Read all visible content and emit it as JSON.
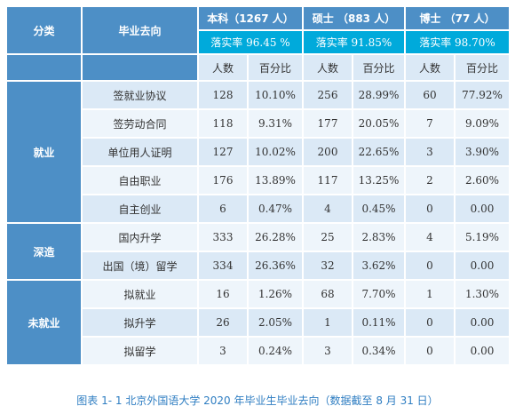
{
  "header": {
    "category_label": "分类",
    "destination_label": "毕业去向",
    "groups": [
      {
        "title": "本科（1267 人）",
        "rate": "落实率 96.45 %"
      },
      {
        "title": "硕士 （883 人）",
        "rate": "落实率 91.85%"
      },
      {
        "title": "博士 （77 人）",
        "rate": "落实率 98.70%"
      }
    ],
    "count_label": "人数",
    "percent_label": "百分比"
  },
  "categories": {
    "employed": "就业",
    "further_study": "深造",
    "not_employed": "未就业"
  },
  "rows": [
    {
      "dest": "签就业协议",
      "v": [
        "128",
        "10.10%",
        "256",
        "28.99%",
        "60",
        "77.92%"
      ]
    },
    {
      "dest": "签劳动合同",
      "v": [
        "118",
        "9.31%",
        "177",
        "20.05%",
        "7",
        "9.09%"
      ]
    },
    {
      "dest": "单位用人证明",
      "v": [
        "127",
        "10.02%",
        "200",
        "22.65%",
        "3",
        "3.90%"
      ]
    },
    {
      "dest": "自由职业",
      "v": [
        "176",
        "13.89%",
        "117",
        "13.25%",
        "2",
        "2.60%"
      ]
    },
    {
      "dest": "自主创业",
      "v": [
        "6",
        "0.47%",
        "4",
        "0.45%",
        "0",
        "0.00"
      ]
    },
    {
      "dest": "国内升学",
      "v": [
        "333",
        "26.28%",
        "25",
        "2.83%",
        "4",
        "5.19%"
      ]
    },
    {
      "dest": "出国（境）留学",
      "v": [
        "334",
        "26.36%",
        "32",
        "3.62%",
        "0",
        "0.00"
      ]
    },
    {
      "dest": "拟就业",
      "v": [
        "16",
        "1.26%",
        "68",
        "7.70%",
        "1",
        "1.30%"
      ]
    },
    {
      "dest": "拟升学",
      "v": [
        "26",
        "2.05%",
        "1",
        "0.11%",
        "0",
        "0.00"
      ]
    },
    {
      "dest": "拟留学",
      "v": [
        "3",
        "0.24%",
        "3",
        "0.34%",
        "0",
        "0.00"
      ]
    }
  ],
  "caption": "图表 1- 1 北京外国语大学 2020 年毕业生毕业去向（数据截至 8 月 31 日）"
}
